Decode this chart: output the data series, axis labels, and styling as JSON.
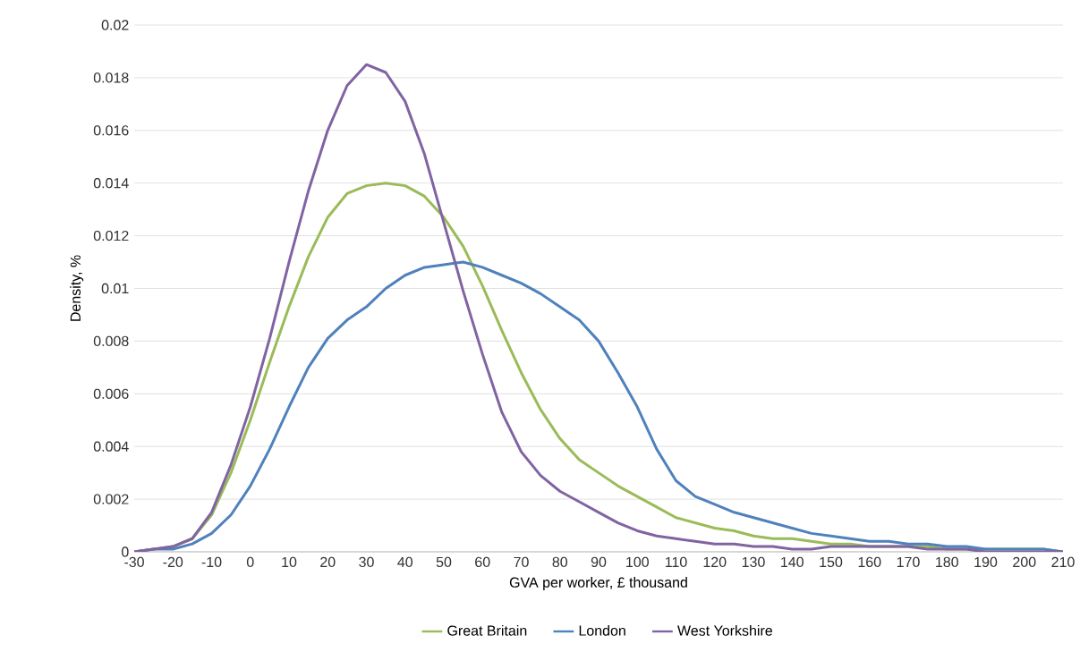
{
  "chart_data": {
    "type": "line",
    "xlabel": "GVA per worker, £ thousand",
    "ylabel": "Density, %",
    "x": [
      -30,
      -25,
      -20,
      -15,
      -10,
      -5,
      0,
      5,
      10,
      15,
      20,
      25,
      30,
      35,
      40,
      45,
      50,
      55,
      60,
      65,
      70,
      75,
      80,
      85,
      90,
      95,
      100,
      105,
      110,
      115,
      120,
      125,
      130,
      135,
      140,
      145,
      150,
      155,
      160,
      165,
      170,
      175,
      180,
      185,
      190,
      195,
      200,
      205,
      210
    ],
    "series": [
      {
        "name": "Great Britain",
        "color": "#9bbb59",
        "values": [
          0,
          0.0001,
          0.0002,
          0.0005,
          0.0014,
          0.003,
          0.005,
          0.0072,
          0.0093,
          0.0112,
          0.0127,
          0.0136,
          0.0139,
          0.014,
          0.0139,
          0.0135,
          0.0127,
          0.0116,
          0.0101,
          0.0084,
          0.0068,
          0.0054,
          0.0043,
          0.0035,
          0.003,
          0.0025,
          0.0021,
          0.0017,
          0.0013,
          0.0011,
          0.0009,
          0.0008,
          0.0006,
          0.0005,
          0.0005,
          0.0004,
          0.0003,
          0.0003,
          0.0002,
          0.0002,
          0.0002,
          0.0002,
          0.0001,
          0.0001,
          0.0001,
          0.0001,
          0.0001,
          0.0001,
          0
        ]
      },
      {
        "name": "London",
        "color": "#4f81bd",
        "values": [
          0,
          0.0001,
          0.0001,
          0.0003,
          0.0007,
          0.0014,
          0.0025,
          0.0039,
          0.0055,
          0.007,
          0.0081,
          0.0088,
          0.0093,
          0.01,
          0.0105,
          0.0108,
          0.0109,
          0.011,
          0.0108,
          0.0105,
          0.0102,
          0.0098,
          0.0093,
          0.0088,
          0.008,
          0.0068,
          0.0055,
          0.0039,
          0.0027,
          0.0021,
          0.0018,
          0.0015,
          0.0013,
          0.0011,
          0.0009,
          0.0007,
          0.0006,
          0.0005,
          0.0004,
          0.0004,
          0.0003,
          0.0003,
          0.0002,
          0.0002,
          0.0001,
          0.0001,
          0.0001,
          0.0001,
          0
        ]
      },
      {
        "name": "West Yorkshire",
        "color": "#8064a2",
        "values": [
          0,
          0.0001,
          0.0002,
          0.0005,
          0.0015,
          0.0033,
          0.0055,
          0.0081,
          0.011,
          0.0137,
          0.016,
          0.0177,
          0.0185,
          0.0182,
          0.0171,
          0.0151,
          0.0125,
          0.0099,
          0.0075,
          0.0053,
          0.0038,
          0.0029,
          0.0023,
          0.0019,
          0.0015,
          0.0011,
          0.0008,
          0.0006,
          0.0005,
          0.0004,
          0.0003,
          0.0003,
          0.0002,
          0.0002,
          0.0001,
          0.0001,
          0.0002,
          0.0002,
          0.0002,
          0.0002,
          0.0002,
          0.0001,
          0.0001,
          0.0001,
          0,
          0,
          0,
          0,
          0
        ]
      }
    ],
    "xlim": [
      -30,
      210
    ],
    "ylim": [
      0,
      0.02
    ],
    "xticks": [
      -30,
      -20,
      -10,
      0,
      10,
      20,
      30,
      40,
      50,
      60,
      70,
      80,
      90,
      100,
      110,
      120,
      130,
      140,
      150,
      160,
      170,
      180,
      190,
      200,
      210
    ],
    "yticks": [
      0,
      0.002,
      0.004,
      0.006,
      0.008,
      0.01,
      0.012,
      0.014,
      0.016,
      0.018,
      0.02
    ],
    "grid": "y",
    "legend": "bottom",
    "marker": "none",
    "line_style": "solid"
  }
}
